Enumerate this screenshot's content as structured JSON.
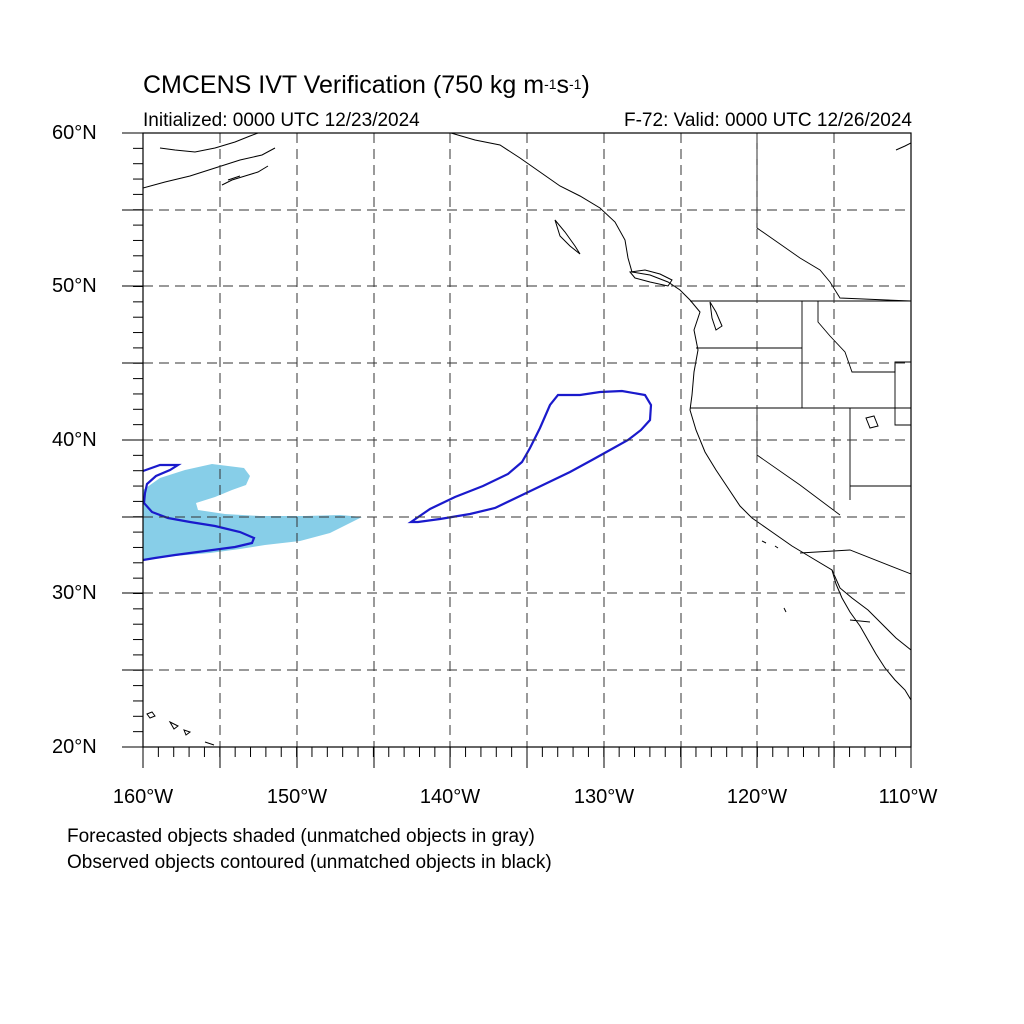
{
  "title": {
    "prefix": "CMCENS IVT Verification (750 kg m",
    "exp1": "-1",
    "mid": "s",
    "exp2": "-1",
    "suffix": ")"
  },
  "initialized": "Initialized: 0000 UTC 12/23/2024",
  "valid": "F-72: Valid: 0000 UTC 12/26/2024",
  "lat_labels": [
    "60°N",
    "50°N",
    "40°N",
    "30°N",
    "20°N"
  ],
  "lon_labels": [
    "160°W",
    "150°W",
    "140°W",
    "130°W",
    "120°W",
    "110°W"
  ],
  "footnotes": [
    "Forecasted objects shaded (unmatched objects in gray)",
    "Observed objects contoured (unmatched objects in black)"
  ],
  "map": {
    "lon_range": [
      -160,
      -110
    ],
    "lat_range": [
      20,
      60
    ],
    "grid_spacing_deg": 5,
    "forecast_fill_color": "#87CEE8",
    "observed_contour_color": "#1A1ACC",
    "coastline_color": "#000000"
  }
}
